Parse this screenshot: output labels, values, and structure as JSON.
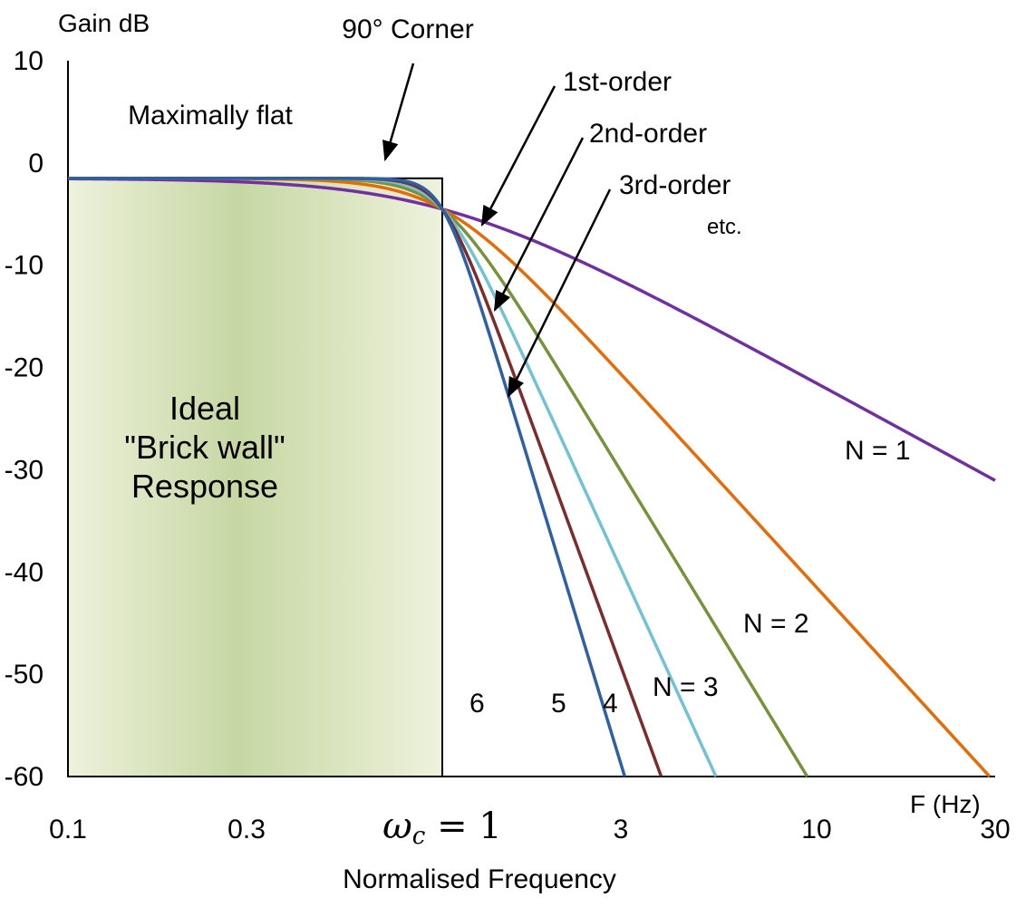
{
  "chart_data": {
    "type": "line",
    "ylabel": "Gain dB",
    "xlabel_unit": "F (Hz)",
    "xlabel": "Normalised Frequency",
    "x_scale": "log",
    "xlim": [
      0.1,
      30
    ],
    "ylim": [
      -60,
      10
    ],
    "y_ticks": [
      10,
      0,
      -10,
      -20,
      -30,
      -40,
      -50,
      -60
    ],
    "x_ticks": [
      {
        "value": 0.1,
        "label": "0.1"
      },
      {
        "value": 0.3,
        "label": "0.3"
      },
      {
        "value": 1,
        "label": "ωc = 1",
        "italic_part": "ω",
        "sub_part": "c",
        "rest": " = 1"
      },
      {
        "value": 3,
        "label": "3"
      },
      {
        "value": 10,
        "label": "10"
      },
      {
        "value": 30,
        "label": "30"
      }
    ],
    "series": [
      {
        "name": "N = 1",
        "order": 1,
        "color": "#7030a0"
      },
      {
        "name": "N = 2",
        "order": 2,
        "color": "#e36c09"
      },
      {
        "name": "N = 3",
        "order": 3,
        "color": "#76923c"
      },
      {
        "name": "4",
        "order": 4,
        "color": "#72c2d4"
      },
      {
        "name": "5",
        "order": 5,
        "color": "#7b2c2c"
      },
      {
        "name": "6",
        "order": 6,
        "color": "#2f5fa5"
      }
    ],
    "brick_wall": {
      "x_from": 0.1,
      "x_to": 1,
      "gain_db": -1.5,
      "text_lines": [
        "Ideal",
        "\"Brick wall\"",
        "Response"
      ],
      "fill_edge": "#eef2dc",
      "fill_center": "#c6d7a3"
    },
    "annotations": {
      "flat_text": "Maximally flat",
      "corner_text": "90° Corner",
      "order_labels": [
        "1st-order",
        "2nd-order",
        "3rd-order"
      ],
      "etc_text": "etc."
    }
  }
}
